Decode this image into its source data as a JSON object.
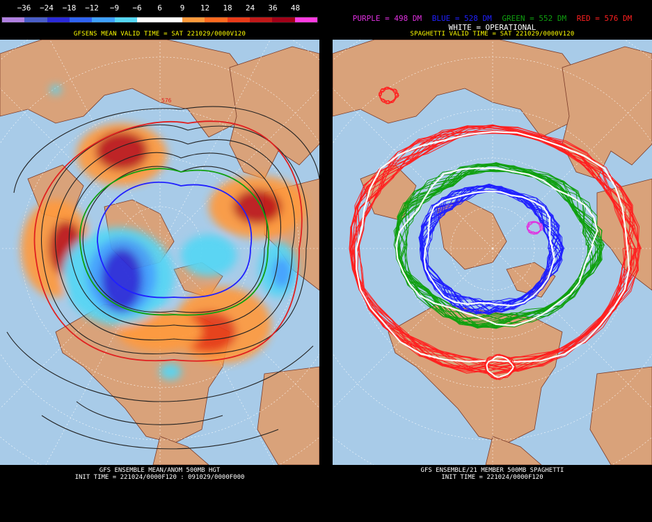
{
  "left": {
    "legend": {
      "labels": [
        "−36",
        "−24",
        "−18",
        "−12",
        "−9",
        "−6",
        "6",
        "9",
        "12",
        "18",
        "24",
        "36",
        "48"
      ],
      "colors": [
        "#b080e0",
        "#4a5ec8",
        "#2a2ad8",
        "#2f63f2",
        "#3fa0ff",
        "#55d6f4",
        "#ffffff",
        "#ffffff",
        "#ff9a3c",
        "#ff6a20",
        "#e83a18",
        "#c01818",
        "#a00018",
        "#ff3ce0"
      ]
    },
    "header": "GFSENS MEAN VALID TIME = SAT 221029/0000V120",
    "footer_line1": "GFS ENSEMBLE MEAN/ANOM 500MB HGT",
    "footer_line2": "INIT TIME = 221024/0000F120 : 091029/0000F000",
    "contour_label": "576"
  },
  "right": {
    "key": {
      "purple": "PURPLE = 498 DM",
      "blue": "BLUE = 528 DM",
      "green": "GREEN = 552 DM",
      "red": "RED = 576 DM",
      "white": "WHITE = OPERATIONAL"
    },
    "key_colors": {
      "purple": "#e030e0",
      "blue": "#2020ff",
      "green": "#10a010",
      "red": "#ff2020",
      "white": "#ffffff"
    },
    "header": "SPAGHETTI VALID TIME = SAT 221029/0000V120",
    "footer_line1": "GFS ENSEMBLE/21 MEMBER 500MB SPAGHETTI",
    "footer_line2": "INIT TIME = 221024/0000F120"
  },
  "map_colors": {
    "ocean": "#a8cbe8",
    "land": "#d9a27a",
    "border": "#7a3a28",
    "grid": "#ffffff"
  }
}
